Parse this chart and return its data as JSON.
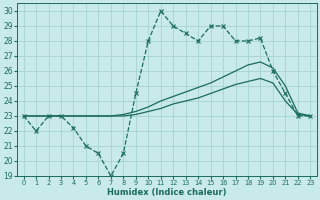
{
  "xlabel": "Humidex (Indice chaleur)",
  "xlim": [
    -0.5,
    23.5
  ],
  "ylim": [
    19,
    30.5
  ],
  "xticks": [
    0,
    1,
    2,
    3,
    4,
    5,
    6,
    7,
    8,
    9,
    10,
    11,
    12,
    13,
    14,
    15,
    16,
    17,
    18,
    19,
    20,
    21,
    22,
    23
  ],
  "yticks": [
    19,
    20,
    21,
    22,
    23,
    24,
    25,
    26,
    27,
    28,
    29,
    30
  ],
  "bg_color": "#c8eaea",
  "grid_color": "#a0cccc",
  "line_color": "#1a6b5a",
  "line1_x": [
    0,
    1,
    2,
    3,
    4,
    5,
    6,
    7,
    8,
    9,
    10,
    11,
    12,
    13,
    14,
    15,
    16,
    17,
    18,
    19,
    20,
    21,
    22,
    23
  ],
  "line1_y": [
    23,
    22,
    23,
    23,
    22.2,
    21,
    20.5,
    19,
    20.5,
    24.5,
    28,
    30,
    29,
    28.5,
    28,
    29,
    29,
    28,
    28,
    28.2,
    26,
    24.5,
    23,
    23
  ],
  "line2_x": [
    0,
    1,
    2,
    3,
    4,
    5,
    6,
    7,
    8,
    9,
    10,
    11,
    12,
    13,
    14,
    15,
    16,
    17,
    18,
    19,
    20,
    21,
    22,
    23
  ],
  "line2_y": [
    23,
    23,
    23,
    23,
    23,
    23,
    23,
    23,
    23.1,
    23.3,
    23.6,
    24.0,
    24.3,
    24.6,
    24.9,
    25.2,
    25.6,
    26.0,
    26.4,
    26.6,
    26.2,
    25.0,
    23.2,
    23
  ],
  "line3_x": [
    0,
    1,
    2,
    3,
    4,
    5,
    6,
    7,
    8,
    9,
    10,
    11,
    12,
    13,
    14,
    15,
    16,
    17,
    18,
    19,
    20,
    21,
    22,
    23
  ],
  "line3_y": [
    23,
    23,
    23,
    23,
    23,
    23,
    23,
    23,
    23.0,
    23.1,
    23.3,
    23.5,
    23.8,
    24.0,
    24.2,
    24.5,
    24.8,
    25.1,
    25.3,
    25.5,
    25.2,
    24.0,
    23.1,
    23
  ]
}
